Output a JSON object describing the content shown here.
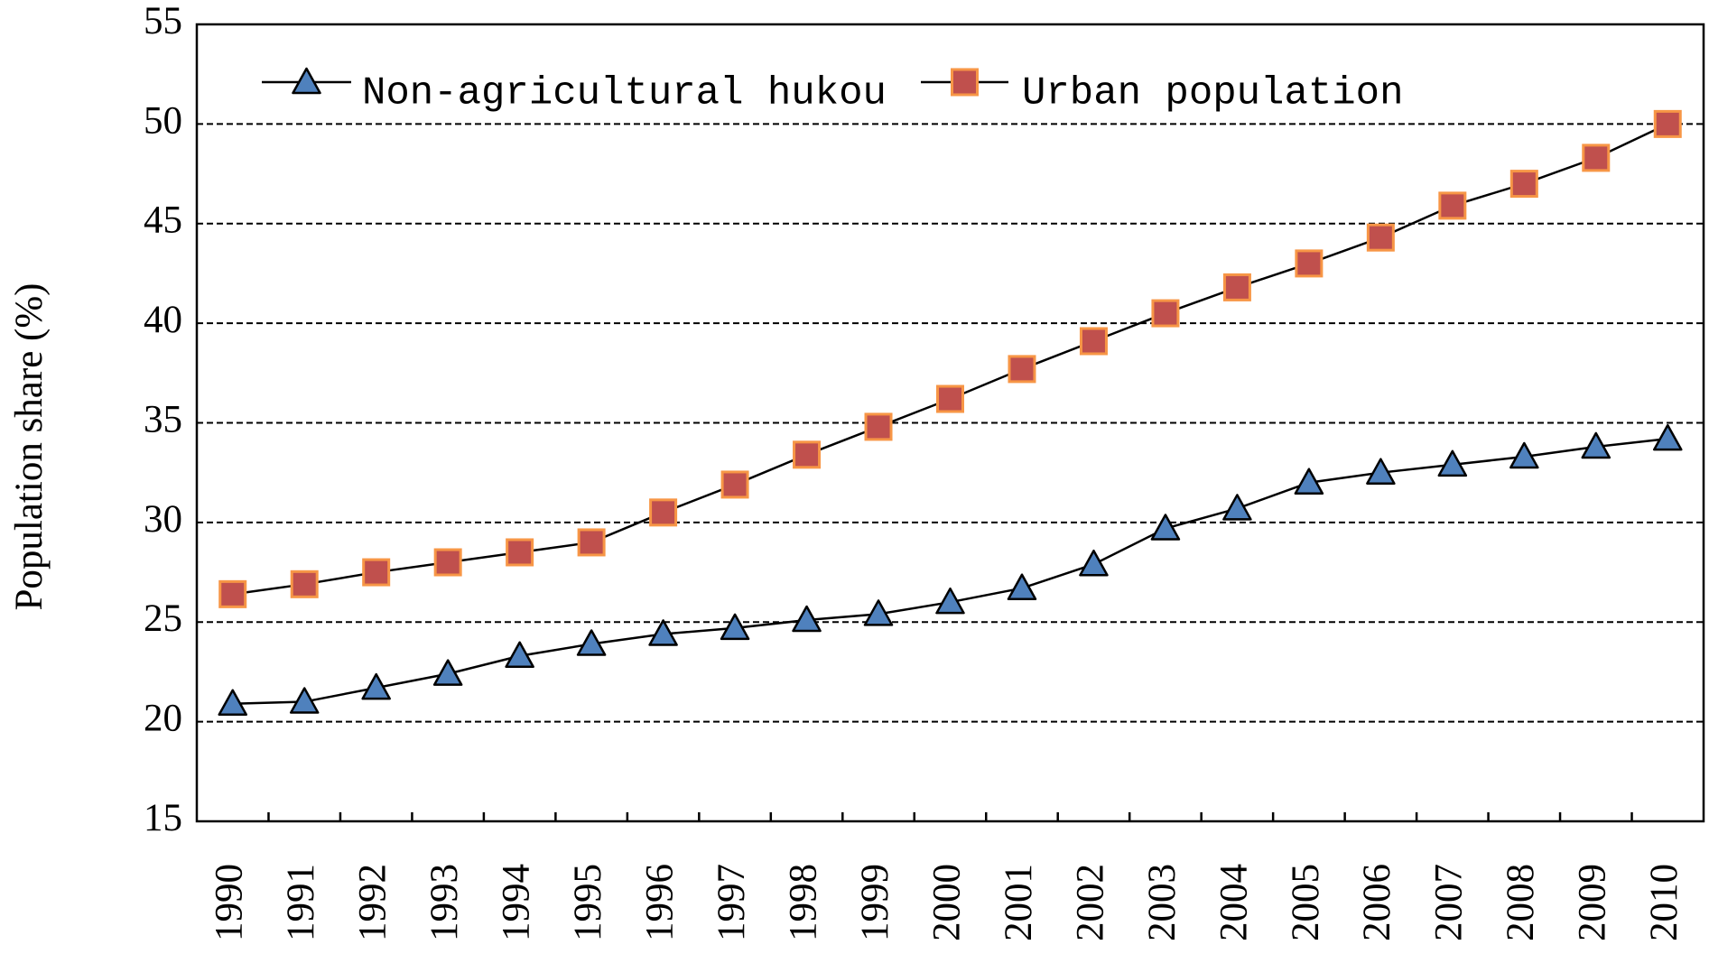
{
  "chart_data": {
    "type": "line",
    "y_label": "Population share (%)",
    "categories": [
      "1990",
      "1991",
      "1992",
      "1993",
      "1994",
      "1995",
      "1996",
      "1997",
      "1998",
      "1999",
      "2000",
      "2001",
      "2002",
      "2003",
      "2004",
      "2005",
      "2006",
      "2007",
      "2008",
      "2009",
      "2010"
    ],
    "series": [
      {
        "name": "Non-agricultural hukou",
        "color": "#4f81bd",
        "marker": "triangle",
        "values": [
          20.9,
          21.0,
          21.7,
          22.4,
          23.3,
          23.9,
          24.4,
          24.7,
          25.1,
          25.4,
          26.0,
          26.7,
          27.9,
          29.7,
          30.7,
          32.0,
          32.5,
          32.9,
          33.3,
          33.8,
          34.2
        ]
      },
      {
        "name": "Urban population",
        "color": "#c0504d",
        "marker": "square",
        "values": [
          26.4,
          26.9,
          27.5,
          28.0,
          28.5,
          29.0,
          30.5,
          31.9,
          33.4,
          34.8,
          36.2,
          37.7,
          39.1,
          40.5,
          41.8,
          43.0,
          44.3,
          45.9,
          47.0,
          48.3,
          50.0
        ]
      }
    ],
    "ylim": [
      15,
      55
    ],
    "yticks": [
      15,
      20,
      25,
      30,
      35,
      40,
      45,
      50,
      55
    ],
    "grid": true,
    "legend": "top-left"
  }
}
